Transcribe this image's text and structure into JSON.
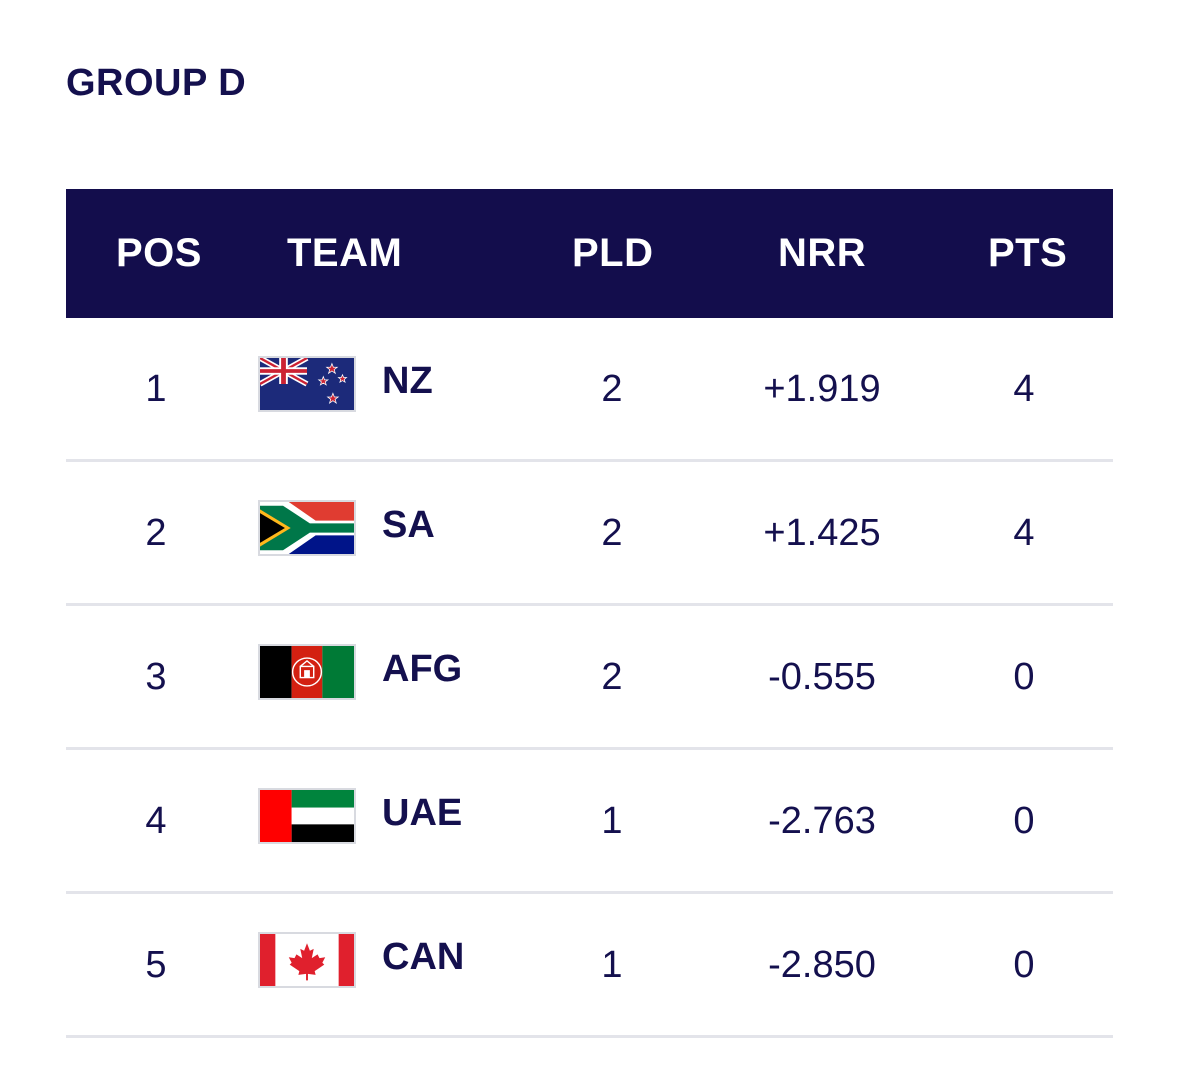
{
  "group_title": "GROUP D",
  "headers": {
    "pos": "POS",
    "team": "TEAM",
    "pld": "PLD",
    "nrr": "NRR",
    "pts": "PTS"
  },
  "rows": [
    {
      "pos": "1",
      "team": "NZ",
      "flag_icon": "new-zealand-flag-icon",
      "pld": "2",
      "nrr": "+1.919",
      "pts": "4"
    },
    {
      "pos": "2",
      "team": "SA",
      "flag_icon": "south-africa-flag-icon",
      "pld": "2",
      "nrr": "+1.425",
      "pts": "4"
    },
    {
      "pos": "3",
      "team": "AFG",
      "flag_icon": "afghanistan-flag-icon",
      "pld": "2",
      "nrr": "-0.555",
      "pts": "0"
    },
    {
      "pos": "4",
      "team": "UAE",
      "flag_icon": "uae-flag-icon",
      "pld": "1",
      "nrr": "-2.763",
      "pts": "0"
    },
    {
      "pos": "5",
      "team": "CAN",
      "flag_icon": "canada-flag-icon",
      "pld": "1",
      "nrr": "-2.850",
      "pts": "0"
    }
  ],
  "colors": {
    "header_bg": "#130d4c",
    "text": "#14104e",
    "divider": "#e3e4ea"
  }
}
